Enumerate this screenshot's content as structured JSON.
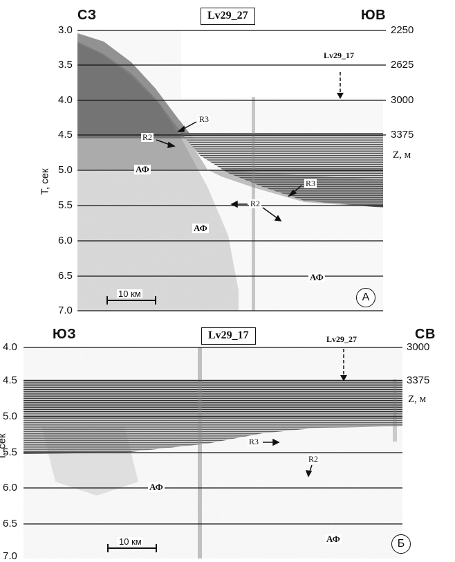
{
  "panel_a": {
    "title": "Lv29_27",
    "left_dir": "СЗ",
    "right_dir": "ЮВ",
    "y_axis_label": "Т, сек",
    "z_label": "Z, м",
    "time_ticks": [
      "3.0",
      "3.5",
      "4.0",
      "4.5",
      "5.0",
      "5.5",
      "6.0",
      "6.5",
      "7.0"
    ],
    "depth_ticks": [
      "2250",
      "2625",
      "3000",
      "3375"
    ],
    "crossing_marker": "Lv29_17",
    "annotations": {
      "r3_upper": "R3",
      "r2_upper": "R2",
      "r3_lower": "R3",
      "r2_lower": "R2",
      "af_upper": "АФ",
      "af_middle": "АФ",
      "af_lower": "АФ"
    },
    "scale": "10 км",
    "panel_letter": "А"
  },
  "panel_b": {
    "title": "Lv29_17",
    "left_dir": "ЮЗ",
    "right_dir": "СВ",
    "y_axis_label": "Т, сек",
    "z_label": "Z, м",
    "time_ticks": [
      "4.0",
      "4.5",
      "5.0",
      "5.5",
      "6.0",
      "6.5",
      "7.0"
    ],
    "depth_ticks": [
      "3000",
      "3375"
    ],
    "crossing_marker": "Lv29_27",
    "annotations": {
      "r3": "R3",
      "r2": "R2",
      "af_left": "АФ",
      "af_right": "АФ"
    },
    "scale": "10 км",
    "panel_letter": "Б"
  },
  "colors": {
    "ink": "#111111",
    "noise_background": "#c9c9c9",
    "reflector_band": "#3a3a3a",
    "paper": "#ffffff"
  }
}
